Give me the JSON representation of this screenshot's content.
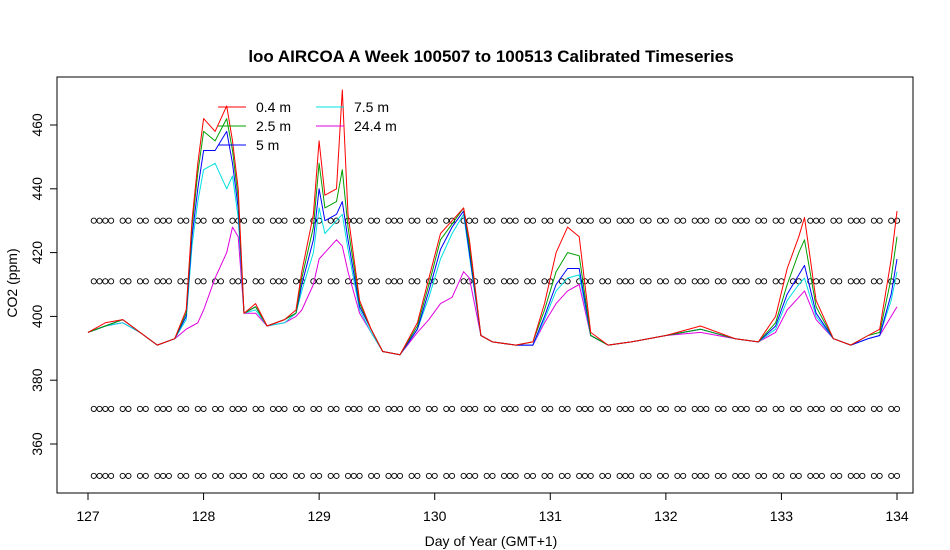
{
  "chart_data": {
    "type": "line",
    "title": "loo AIRCOA A  Week 100507 to 100513  Calibrated Timeseries",
    "xlabel": "Day of Year (GMT+1)",
    "ylabel": "CO2 (ppm)",
    "xlim": [
      127,
      134
    ],
    "ylim": [
      350,
      470
    ],
    "x_ticks": [
      127,
      128,
      129,
      130,
      131,
      132,
      133,
      134
    ],
    "y_ticks": [
      360,
      380,
      400,
      420,
      440,
      460
    ],
    "grid": false,
    "legend_position": "top-left",
    "series": [
      {
        "name": "0.4 m",
        "color": "#ff0000",
        "x": [
          127.0,
          127.15,
          127.3,
          127.45,
          127.6,
          127.75,
          127.85,
          127.9,
          127.95,
          128.0,
          128.1,
          128.2,
          128.25,
          128.3,
          128.35,
          128.45,
          128.55,
          128.7,
          128.8,
          128.85,
          128.95,
          129.0,
          129.05,
          129.15,
          129.2,
          129.25,
          129.35,
          129.45,
          129.55,
          129.7,
          129.85,
          129.95,
          130.05,
          130.15,
          130.25,
          130.3,
          130.4,
          130.5,
          130.7,
          130.85,
          130.95,
          131.05,
          131.15,
          131.25,
          131.35,
          131.5,
          131.7,
          132.0,
          132.3,
          132.6,
          132.8,
          132.95,
          133.05,
          133.15,
          133.2,
          133.3,
          133.45,
          133.6,
          133.75,
          133.85,
          133.95,
          134.0
        ],
        "y": [
          395,
          398,
          399,
          395,
          391,
          393,
          402,
          430,
          448,
          462,
          458,
          466,
          455,
          440,
          401,
          404,
          397,
          399,
          402,
          414,
          432,
          455,
          438,
          440,
          471,
          432,
          405,
          396,
          389,
          388,
          398,
          412,
          426,
          430,
          434,
          424,
          394,
          392,
          391,
          392,
          404,
          420,
          428,
          425,
          395,
          391,
          392,
          394,
          397,
          393,
          392,
          400,
          415,
          425,
          431,
          405,
          393,
          391,
          394,
          396,
          418,
          433
        ]
      },
      {
        "name": "2.5 m",
        "color": "#00a000",
        "x": [
          127.0,
          127.15,
          127.3,
          127.45,
          127.6,
          127.75,
          127.85,
          127.9,
          127.95,
          128.0,
          128.1,
          128.2,
          128.25,
          128.3,
          128.35,
          128.45,
          128.55,
          128.7,
          128.8,
          128.85,
          128.95,
          129.0,
          129.05,
          129.15,
          129.2,
          129.25,
          129.35,
          129.45,
          129.55,
          129.7,
          129.85,
          129.95,
          130.05,
          130.15,
          130.25,
          130.3,
          130.4,
          130.5,
          130.7,
          130.85,
          130.95,
          131.05,
          131.15,
          131.25,
          131.35,
          131.5,
          131.7,
          132.0,
          132.3,
          132.6,
          132.8,
          132.95,
          133.05,
          133.15,
          133.2,
          133.3,
          133.45,
          133.6,
          133.75,
          133.85,
          133.95,
          134.0
        ],
        "y": [
          395,
          397,
          399,
          395,
          391,
          393,
          401,
          428,
          445,
          458,
          455,
          462,
          452,
          437,
          401,
          403,
          397,
          399,
          401,
          412,
          428,
          448,
          434,
          436,
          446,
          428,
          404,
          396,
          389,
          388,
          397,
          410,
          424,
          429,
          434,
          422,
          394,
          392,
          391,
          392,
          402,
          414,
          420,
          419,
          394,
          391,
          392,
          394,
          396,
          393,
          392,
          398,
          410,
          420,
          424,
          403,
          393,
          391,
          394,
          395,
          412,
          425
        ]
      },
      {
        "name": "5 m",
        "color": "#0000ff",
        "x": [
          127.0,
          127.15,
          127.3,
          127.45,
          127.6,
          127.75,
          127.85,
          127.9,
          127.95,
          128.0,
          128.1,
          128.2,
          128.25,
          128.3,
          128.35,
          128.45,
          128.55,
          128.7,
          128.8,
          128.85,
          128.95,
          129.0,
          129.05,
          129.15,
          129.2,
          129.25,
          129.35,
          129.45,
          129.55,
          129.7,
          129.85,
          129.95,
          130.05,
          130.15,
          130.25,
          130.3,
          130.4,
          130.5,
          130.7,
          130.85,
          130.95,
          131.05,
          131.15,
          131.25,
          131.35,
          131.5,
          131.7,
          132.0,
          132.3,
          132.6,
          132.8,
          132.95,
          133.05,
          133.15,
          133.2,
          133.3,
          133.45,
          133.6,
          133.75,
          133.85,
          133.95,
          134.0
        ],
        "y": [
          395,
          397,
          399,
          395,
          391,
          393,
          400,
          425,
          440,
          452,
          452,
          458,
          448,
          434,
          401,
          403,
          397,
          399,
          401,
          410,
          424,
          440,
          430,
          432,
          436,
          424,
          403,
          396,
          389,
          388,
          396,
          408,
          421,
          428,
          433,
          420,
          394,
          392,
          391,
          391,
          400,
          410,
          415,
          415,
          394,
          391,
          392,
          394,
          396,
          393,
          392,
          397,
          407,
          413,
          416,
          401,
          393,
          391,
          393,
          394,
          407,
          418
        ]
      },
      {
        "name": "7.5 m",
        "color": "#00e0e0",
        "x": [
          127.0,
          127.15,
          127.3,
          127.45,
          127.6,
          127.75,
          127.85,
          127.9,
          127.95,
          128.0,
          128.1,
          128.2,
          128.25,
          128.3,
          128.35,
          128.45,
          128.55,
          128.7,
          128.8,
          128.85,
          128.95,
          129.0,
          129.05,
          129.15,
          129.2,
          129.25,
          129.35,
          129.45,
          129.55,
          129.7,
          129.85,
          129.95,
          130.05,
          130.15,
          130.25,
          130.3,
          130.4,
          130.5,
          130.7,
          130.85,
          130.95,
          131.05,
          131.15,
          131.25,
          131.35,
          131.5,
          131.7,
          132.0,
          132.3,
          132.6,
          132.8,
          132.95,
          133.05,
          133.15,
          133.2,
          133.3,
          133.45,
          133.6,
          133.75,
          133.85,
          133.95,
          134.0
        ],
        "y": [
          395,
          397,
          398,
          395,
          391,
          393,
          399,
          422,
          436,
          446,
          448,
          440,
          444,
          431,
          401,
          402,
          397,
          398,
          401,
          408,
          420,
          434,
          426,
          430,
          432,
          421,
          402,
          395,
          389,
          388,
          396,
          406,
          418,
          426,
          432,
          419,
          394,
          392,
          391,
          391,
          399,
          408,
          412,
          413,
          394,
          391,
          392,
          394,
          396,
          393,
          392,
          396,
          405,
          410,
          412,
          400,
          393,
          391,
          393,
          394,
          405,
          414
        ]
      },
      {
        "name": "24.4 m",
        "color": "#e000e0",
        "x": [
          127.0,
          127.15,
          127.3,
          127.45,
          127.6,
          127.75,
          127.85,
          127.9,
          127.95,
          128.0,
          128.1,
          128.2,
          128.25,
          128.3,
          128.35,
          128.45,
          128.55,
          128.7,
          128.8,
          128.85,
          128.95,
          129.0,
          129.05,
          129.15,
          129.2,
          129.25,
          129.35,
          129.45,
          129.55,
          129.7,
          129.85,
          129.95,
          130.05,
          130.15,
          130.25,
          130.3,
          130.4,
          130.5,
          130.7,
          130.85,
          130.95,
          131.05,
          131.15,
          131.25,
          131.35,
          131.5,
          131.7,
          132.0,
          132.3,
          132.6,
          132.8,
          132.95,
          133.05,
          133.15,
          133.2,
          133.3,
          133.45,
          133.6,
          133.75,
          133.85,
          133.95,
          134.0
        ],
        "y": [
          395,
          397,
          398,
          395,
          391,
          393,
          396,
          397,
          398,
          402,
          412,
          420,
          428,
          425,
          401,
          401,
          397,
          398,
          400,
          402,
          410,
          418,
          420,
          424,
          422,
          414,
          401,
          395,
          389,
          388,
          395,
          399,
          404,
          406,
          414,
          412,
          394,
          392,
          391,
          391,
          398,
          404,
          408,
          410,
          394,
          391,
          392,
          394,
          395,
          393,
          392,
          395,
          402,
          406,
          408,
          399,
          393,
          391,
          393,
          394,
          400,
          403
        ]
      }
    ],
    "marker_series": {
      "marker": "open-circle",
      "color": "#000000",
      "levels": [
        430,
        411,
        371,
        350
      ],
      "x_positions": [
        127.05,
        127.1,
        127.15,
        127.2,
        127.3,
        127.35,
        127.45,
        127.5,
        127.6,
        127.65,
        127.7,
        127.8,
        127.85,
        127.95,
        128.0,
        128.1,
        128.15,
        128.25,
        128.3,
        128.35,
        128.45,
        128.5,
        128.6,
        128.65,
        128.7,
        128.8,
        128.85,
        128.95,
        129.0,
        129.1,
        129.15,
        129.25,
        129.3,
        129.35,
        129.45,
        129.5,
        129.6,
        129.65,
        129.7,
        129.8,
        129.85,
        129.95,
        130.0,
        130.1,
        130.15,
        130.25,
        130.3,
        130.35,
        130.45,
        130.5,
        130.6,
        130.65,
        130.7,
        130.8,
        130.85,
        130.95,
        131.0,
        131.1,
        131.15,
        131.25,
        131.3,
        131.35,
        131.45,
        131.5,
        131.6,
        131.65,
        131.7,
        131.8,
        131.85,
        131.95,
        132.0,
        132.1,
        132.15,
        132.25,
        132.3,
        132.35,
        132.45,
        132.5,
        132.6,
        132.65,
        132.7,
        132.8,
        132.85,
        132.95,
        133.0,
        133.1,
        133.15,
        133.25,
        133.3,
        133.35,
        133.45,
        133.5,
        133.6,
        133.65,
        133.7,
        133.8,
        133.85,
        133.95,
        134.0
      ]
    }
  }
}
